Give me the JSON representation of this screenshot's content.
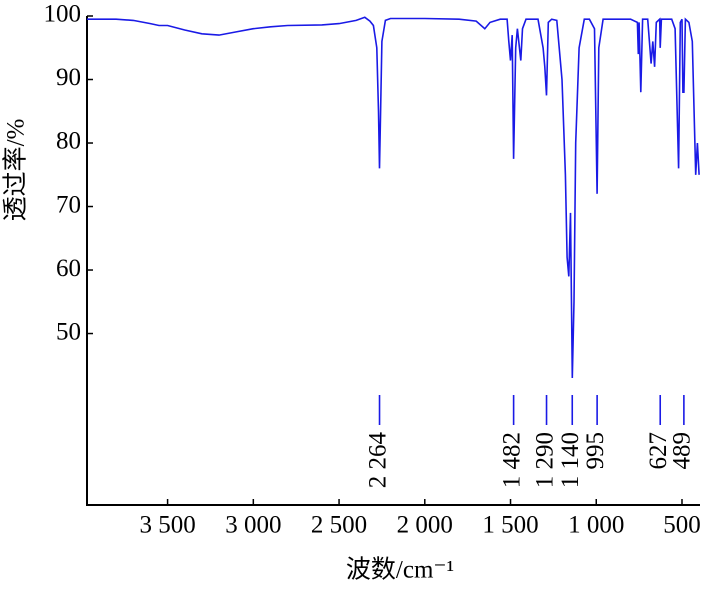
{
  "chart_data": {
    "type": "line",
    "xlabel": "波数/cm⁻¹",
    "ylabel": "透过率/%",
    "xlim": [
      3970,
      395
    ],
    "ylim": [
      23,
      100
    ],
    "xticks": [
      {
        "value": 3500,
        "label": "3 500"
      },
      {
        "value": 3000,
        "label": "3 000"
      },
      {
        "value": 2500,
        "label": "2 500"
      },
      {
        "value": 2000,
        "label": "2 000"
      },
      {
        "value": 1500,
        "label": "1 500"
      },
      {
        "value": 1000,
        "label": "1 000"
      },
      500
    ],
    "yticks": [
      50,
      60,
      70,
      80,
      90,
      100
    ],
    "series": [
      {
        "color": "#1a1ae6",
        "x": [
          3970,
          3800,
          3700,
          3600,
          3550,
          3500,
          3400,
          3300,
          3200,
          3100,
          3000,
          2900,
          2800,
          2600,
          2500,
          2400,
          2350,
          2320,
          2300,
          2280,
          2270,
          2264,
          2258,
          2250,
          2230,
          2200,
          2000,
          1800,
          1700,
          1650,
          1620,
          1560,
          1520,
          1510,
          1500,
          1490,
          1482,
          1470,
          1460,
          1440,
          1430,
          1410,
          1340,
          1310,
          1300,
          1290,
          1280,
          1260,
          1230,
          1200,
          1180,
          1170,
          1160,
          1150,
          1140,
          1130,
          1120,
          1100,
          1070,
          1040,
          1010,
          995,
          985,
          960,
          800,
          760,
          755,
          750,
          740,
          730,
          700,
          680,
          670,
          660,
          650,
          630,
          627,
          620,
          560,
          540,
          520,
          510,
          500,
          495,
          489,
          480,
          460,
          440,
          420,
          410,
          400
        ],
        "values": [
          99.5,
          99.5,
          99.3,
          98.8,
          98.5,
          98.5,
          97.8,
          97.2,
          97.0,
          97.5,
          98.0,
          98.3,
          98.5,
          98.6,
          98.8,
          99.3,
          99.8,
          99.2,
          98.5,
          95,
          85,
          76,
          85,
          96,
          99.3,
          99.6,
          99.6,
          99.5,
          99.2,
          98,
          99,
          99.5,
          99.5,
          96,
          93,
          97,
          77.5,
          95,
          98,
          93,
          98,
          99.5,
          99.5,
          95,
          92,
          87.5,
          99,
          99.5,
          99.3,
          90,
          75,
          62,
          59,
          69,
          43,
          55,
          80,
          95,
          99.5,
          99.5,
          98,
          72,
          95,
          99.5,
          99.5,
          99,
          94,
          99,
          88,
          99.5,
          99.5,
          92.5,
          96,
          92,
          99,
          99.5,
          95,
          99.5,
          99.5,
          98,
          76,
          99,
          99.5,
          88,
          88,
          99.5,
          99,
          96,
          75,
          80,
          75
        ]
      }
    ],
    "peaks": [
      {
        "value": 2264,
        "label": "2 264"
      },
      {
        "value": 1482,
        "label": "1 482"
      },
      {
        "value": 1290,
        "label": "1 290"
      },
      {
        "value": 1140,
        "label": "1 140"
      },
      {
        "value": 995,
        "label": "995"
      },
      {
        "value": 627,
        "label": "627"
      },
      {
        "value": 489,
        "label": "489"
      }
    ]
  }
}
